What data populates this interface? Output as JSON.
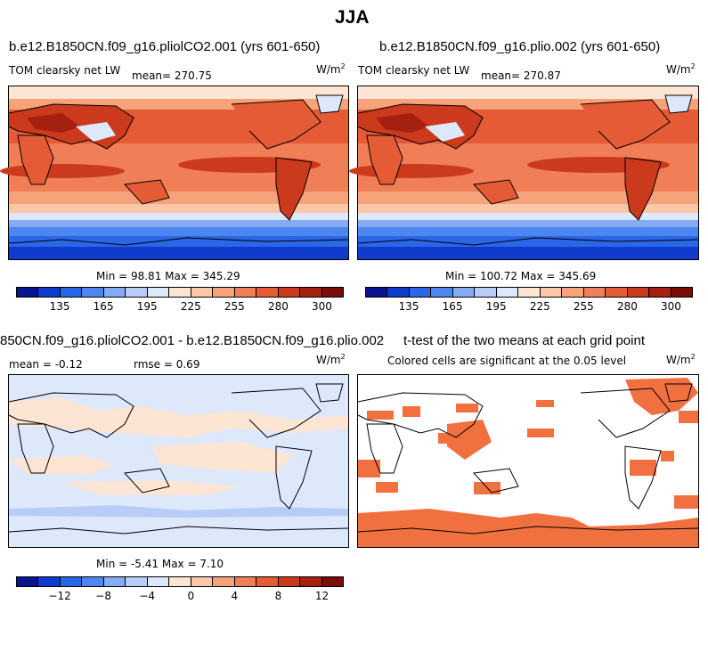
{
  "figure_title": "JJA",
  "units_label": "W/m",
  "units_exp": "2",
  "chart_data": [
    {
      "type": "heatmap",
      "title": "b.e12.B1850CN.f09_g16.pliolCO2.001 (yrs 601-650)",
      "variable": "TOM clearsky net LW",
      "mean_label": "mean= 270.75",
      "min_max_label": "Min =  98.81 Max = 345.29",
      "min": 98.81,
      "max": 345.29,
      "mean": 270.75,
      "colorbar_ticks": [
        "135",
        "165",
        "195",
        "225",
        "255",
        "280",
        "300"
      ]
    },
    {
      "type": "heatmap",
      "title": "b.e12.B1850CN.f09_g16.plio.002 (yrs 601-650)",
      "variable": "TOM clearsky net LW",
      "mean_label": "mean= 270.87",
      "min_max_label": "Min = 100.72 Max = 345.69",
      "min": 100.72,
      "max": 345.69,
      "mean": 270.87,
      "colorbar_ticks": [
        "135",
        "165",
        "195",
        "225",
        "255",
        "280",
        "300"
      ]
    },
    {
      "type": "heatmap",
      "title": "850CN.f09_g16.pliolCO2.001 - b.e12.B1850CN.f09_g16.plio.002",
      "mean_label": "mean =   -0.12",
      "rmse_label": "rmse =    0.69",
      "min_max_label": "Min =  -5.41 Max =   7.10",
      "min": -5.41,
      "max": 7.1,
      "mean": -0.12,
      "rmse": 0.69,
      "colorbar_ticks": [
        "−12",
        "−8",
        "−4",
        "0",
        "4",
        "8",
        "12"
      ]
    },
    {
      "type": "heatmap",
      "title": "t-test of the two means at each grid point",
      "subtitle": "Colored cells are significant at the 0.05 level",
      "significance_level": 0.05
    }
  ],
  "colors": {
    "abs_scale": [
      "#08158f",
      "#0f3ccd",
      "#2a67e6",
      "#4d86f0",
      "#86abf5",
      "#b7cdf8",
      "#dde8fb",
      "#fde5d4",
      "#fbc7a8",
      "#f6a37c",
      "#f07f58",
      "#e45b35",
      "#cb3a1c",
      "#a62010",
      "#7a0d08"
    ],
    "diff_scale": [
      "#08158f",
      "#0f3ccd",
      "#2a67e6",
      "#4d86f0",
      "#86abf5",
      "#b7cdf8",
      "#dde8fb",
      "#fde5d4",
      "#fbc7a8",
      "#f6a37c",
      "#f07f58",
      "#e45b35",
      "#cb3a1c",
      "#a62010",
      "#7a0d08"
    ],
    "significant": "#f07040"
  }
}
